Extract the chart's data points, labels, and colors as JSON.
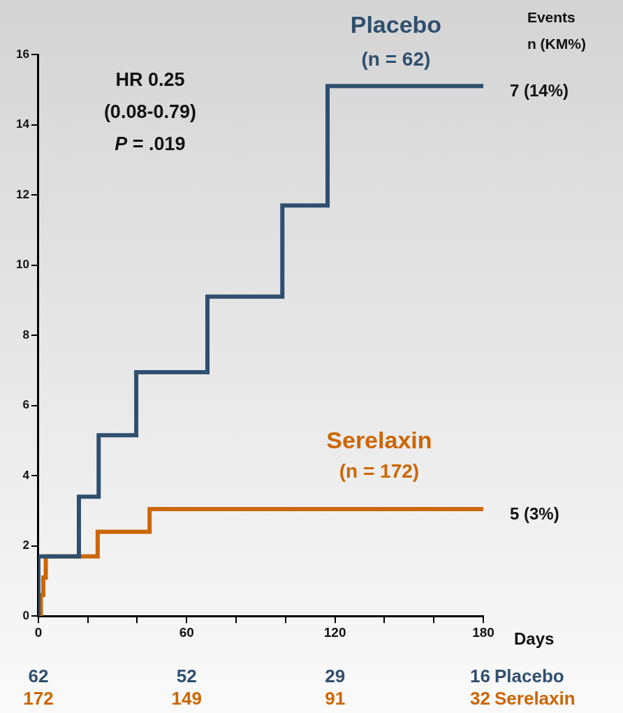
{
  "chart_data": {
    "type": "step",
    "xlabel": "Days",
    "xlim": [
      0,
      180
    ],
    "xticks": [
      0,
      {
        "value": 20,
        "label": null
      },
      {
        "value": 40,
        "label": null
      },
      60,
      {
        "value": 80,
        "label": null
      },
      {
        "value": 100,
        "label": null
      },
      120,
      {
        "value": 140,
        "label": null
      },
      {
        "value": 160,
        "label": null
      },
      180
    ],
    "ylim": [
      0,
      16
    ],
    "yticks": [
      0,
      2,
      4,
      6,
      8,
      10,
      12,
      14,
      16
    ],
    "grid": false,
    "legend": false,
    "line_style": "solid",
    "marker": "none",
    "series": [
      {
        "name": "Placebo",
        "color": "#2f4f6f",
        "x": [
          0,
          0,
          16.4,
          24.4,
          39.6,
          68.4,
          98.7,
          117,
          180
        ],
        "values": [
          0,
          1.7,
          3.4,
          5.15,
          6.95,
          9.1,
          11.7,
          15.1,
          15.1
        ]
      },
      {
        "name": "Serelaxin",
        "color": "#cc6600",
        "x": [
          0,
          1,
          2,
          3,
          24,
          45,
          180
        ],
        "values": [
          0,
          0.6,
          1.1,
          1.7,
          2.4,
          3.05,
          3.05
        ]
      }
    ],
    "annotations": [
      "HR 0.25",
      "(0.08-0.79)",
      "P = .019",
      "(n = 62)",
      "(n = 172)",
      "Events",
      "n (KM%)",
      {
        "text": "7 (14%)",
        "x": 180,
        "y": 15.1
      },
      {
        "text": "5 (3%)",
        "x": 180,
        "y": 3.05
      },
      "62",
      "52",
      "29",
      "16",
      "Placebo",
      "172",
      "149",
      "91",
      "32",
      "Serelaxin"
    ]
  }
}
